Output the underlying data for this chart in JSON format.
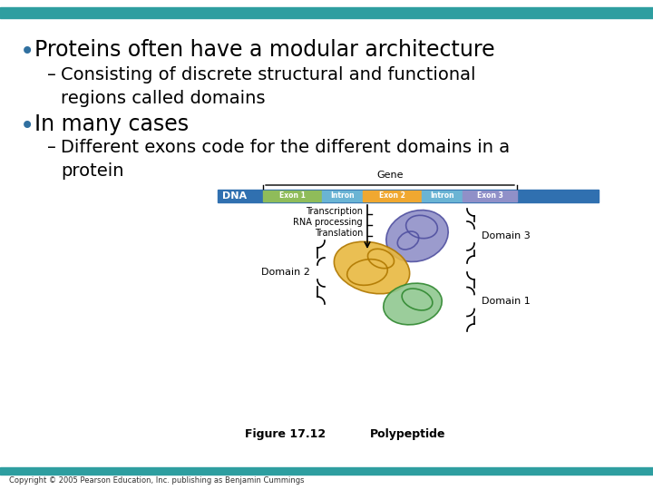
{
  "bg_color": "#ffffff",
  "top_bar_color": "#2e9ea0",
  "bottom_bar_color": "#2e9ea0",
  "title_color": "#000000",
  "bullet1": "Proteins often have a modular architecture",
  "sub1": "Consisting of discrete structural and functional\nregions called domains",
  "bullet2": "In many cases",
  "sub2": "Different exons code for the different domains in a\nprotein",
  "fig_label": "Figure 17.12",
  "polypeptide_label": "Polypeptide",
  "copyright": "Copyright © 2005 Pearson Education, Inc. publishing as Benjamin Cummings",
  "dna_label": "DNA",
  "gene_label": "Gene",
  "steps": [
    "Transcription",
    "RNA processing",
    "Translation"
  ],
  "domain_labels": [
    "Domain 3",
    "Domain 2",
    "Domain 1"
  ],
  "exon1_color": "#8fbc5a",
  "intron1_color": "#6ab4d4",
  "exon2_color": "#f0a830",
  "intron2_color": "#6ab4d4",
  "exon3_color": "#9090c8",
  "dna_bar_color": "#3070b0",
  "domain3_color": "#9090c8",
  "domain2_color": "#e8b840",
  "domain1_color": "#90c890"
}
